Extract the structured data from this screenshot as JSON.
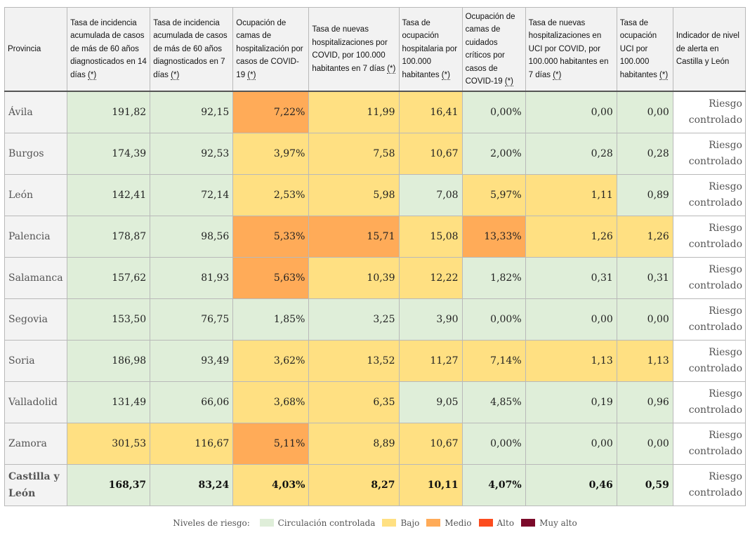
{
  "colors": {
    "low": "#dfeed9",
    "medium": "#ffe082",
    "high": "#ffab58",
    "very_high": "#fc4c1e",
    "extreme": "#7b0a2a"
  },
  "headers": [
    {
      "label": "Provincia",
      "ast": ""
    },
    {
      "label": "Tasa de incidencia acumulada de casos de más de 60 años diagnosticados en 14 días",
      "ast": "(*)"
    },
    {
      "label": "Tasa de incidencia acumulada de casos de más de 60 años diagnosticados en 7 días",
      "ast": "(*)"
    },
    {
      "label": "Ocupación de camas de hospitalización por casos de COVID-19",
      "ast": "(*)"
    },
    {
      "label": "Tasa de nuevas hospitalizaciones por COVID, por 100.000 habitantes en 7 días",
      "ast": "(*)"
    },
    {
      "label": "Tasa de ocupación hospitalaria por 100.000 habitantes",
      "ast": "(*)"
    },
    {
      "label": "Ocupación de camas de cuidados críticos por casos de COVID-19",
      "ast": "(*)"
    },
    {
      "label": "Tasa de nuevas hospitalizaciones en UCI por COVID, por 100.000 habitantes en 7 días",
      "ast": "(*)"
    },
    {
      "label": "Tasa de ocupación UCI por 100.000 habitantes",
      "ast": "(*)"
    },
    {
      "label": "Indicador de nivel de alerta en Castilla y León",
      "ast": ""
    }
  ],
  "rows": [
    {
      "province": "Ávila",
      "alert": [
        "Riesgo",
        "controlado"
      ],
      "cells": [
        {
          "v": "191,82",
          "l": "low"
        },
        {
          "v": "92,15",
          "l": "low"
        },
        {
          "v": "7,22%",
          "l": "high"
        },
        {
          "v": "11,99",
          "l": "medium"
        },
        {
          "v": "16,41",
          "l": "medium"
        },
        {
          "v": "0,00%",
          "l": "low"
        },
        {
          "v": "0,00",
          "l": "low"
        },
        {
          "v": "0,00",
          "l": "low"
        }
      ]
    },
    {
      "province": "Burgos",
      "alert": [
        "Riesgo",
        "controlado"
      ],
      "cells": [
        {
          "v": "174,39",
          "l": "low"
        },
        {
          "v": "92,53",
          "l": "low"
        },
        {
          "v": "3,97%",
          "l": "medium"
        },
        {
          "v": "7,58",
          "l": "medium"
        },
        {
          "v": "10,67",
          "l": "medium"
        },
        {
          "v": "2,00%",
          "l": "low"
        },
        {
          "v": "0,28",
          "l": "low"
        },
        {
          "v": "0,28",
          "l": "low"
        }
      ]
    },
    {
      "province": "León",
      "alert": [
        "Riesgo",
        "controlado"
      ],
      "cells": [
        {
          "v": "142,41",
          "l": "low"
        },
        {
          "v": "72,14",
          "l": "low"
        },
        {
          "v": "2,53%",
          "l": "medium"
        },
        {
          "v": "5,98",
          "l": "medium"
        },
        {
          "v": "7,08",
          "l": "low"
        },
        {
          "v": "5,97%",
          "l": "medium"
        },
        {
          "v": "1,11",
          "l": "medium"
        },
        {
          "v": "0,89",
          "l": "low"
        }
      ]
    },
    {
      "province": "Palencia",
      "alert": [
        "Riesgo",
        "controlado"
      ],
      "cells": [
        {
          "v": "178,87",
          "l": "low"
        },
        {
          "v": "98,56",
          "l": "low"
        },
        {
          "v": "5,33%",
          "l": "high"
        },
        {
          "v": "15,71",
          "l": "high"
        },
        {
          "v": "15,08",
          "l": "medium"
        },
        {
          "v": "13,33%",
          "l": "high"
        },
        {
          "v": "1,26",
          "l": "medium"
        },
        {
          "v": "1,26",
          "l": "medium"
        }
      ]
    },
    {
      "province": "Salamanca",
      "alert": [
        "Riesgo",
        "controlado"
      ],
      "cells": [
        {
          "v": "157,62",
          "l": "low"
        },
        {
          "v": "81,93",
          "l": "low"
        },
        {
          "v": "5,63%",
          "l": "high"
        },
        {
          "v": "10,39",
          "l": "medium"
        },
        {
          "v": "12,22",
          "l": "medium"
        },
        {
          "v": "1,82%",
          "l": "low"
        },
        {
          "v": "0,31",
          "l": "low"
        },
        {
          "v": "0,31",
          "l": "low"
        }
      ]
    },
    {
      "province": "Segovia",
      "alert": [
        "Riesgo",
        "controlado"
      ],
      "cells": [
        {
          "v": "153,50",
          "l": "low"
        },
        {
          "v": "76,75",
          "l": "low"
        },
        {
          "v": "1,85%",
          "l": "low"
        },
        {
          "v": "3,25",
          "l": "low"
        },
        {
          "v": "3,90",
          "l": "low"
        },
        {
          "v": "0,00%",
          "l": "low"
        },
        {
          "v": "0,00",
          "l": "low"
        },
        {
          "v": "0,00",
          "l": "low"
        }
      ]
    },
    {
      "province": "Soria",
      "alert": [
        "Riesgo",
        "controlado"
      ],
      "cells": [
        {
          "v": "186,98",
          "l": "low"
        },
        {
          "v": "93,49",
          "l": "low"
        },
        {
          "v": "3,62%",
          "l": "medium"
        },
        {
          "v": "13,52",
          "l": "medium"
        },
        {
          "v": "11,27",
          "l": "medium"
        },
        {
          "v": "7,14%",
          "l": "medium"
        },
        {
          "v": "1,13",
          "l": "medium"
        },
        {
          "v": "1,13",
          "l": "medium"
        }
      ]
    },
    {
      "province": "Valladolid",
      "alert": [
        "Riesgo",
        "controlado"
      ],
      "cells": [
        {
          "v": "131,49",
          "l": "low"
        },
        {
          "v": "66,06",
          "l": "low"
        },
        {
          "v": "3,68%",
          "l": "medium"
        },
        {
          "v": "6,35",
          "l": "medium"
        },
        {
          "v": "9,05",
          "l": "low"
        },
        {
          "v": "4,85%",
          "l": "low"
        },
        {
          "v": "0,19",
          "l": "low"
        },
        {
          "v": "0,96",
          "l": "low"
        }
      ]
    },
    {
      "province": "Zamora",
      "alert": [
        "Riesgo",
        "controlado"
      ],
      "cells": [
        {
          "v": "301,53",
          "l": "medium"
        },
        {
          "v": "116,67",
          "l": "medium"
        },
        {
          "v": "5,11%",
          "l": "high"
        },
        {
          "v": "8,89",
          "l": "medium"
        },
        {
          "v": "10,67",
          "l": "medium"
        },
        {
          "v": "0,00%",
          "l": "low"
        },
        {
          "v": "0,00",
          "l": "low"
        },
        {
          "v": "0,00",
          "l": "low"
        }
      ]
    }
  ],
  "total": {
    "province": [
      "Castilla y",
      "León"
    ],
    "alert": [
      "Riesgo",
      "controlado"
    ],
    "cells": [
      {
        "v": "168,37",
        "l": "low"
      },
      {
        "v": "83,24",
        "l": "low"
      },
      {
        "v": "4,03%",
        "l": "medium"
      },
      {
        "v": "8,27",
        "l": "medium"
      },
      {
        "v": "10,11",
        "l": "medium"
      },
      {
        "v": "4,07%",
        "l": "low"
      },
      {
        "v": "0,46",
        "l": "low"
      },
      {
        "v": "0,59",
        "l": "low"
      }
    ]
  },
  "legend": {
    "title": "Niveles de riesgo:",
    "items": [
      {
        "label": "Circulación controlada",
        "color": "#dfeed9"
      },
      {
        "label": "Bajo",
        "color": "#ffe082"
      },
      {
        "label": "Medio",
        "color": "#ffab58"
      },
      {
        "label": "Alto",
        "color": "#fc4c1e"
      },
      {
        "label": "Muy alto",
        "color": "#7b0a2a"
      }
    ]
  }
}
